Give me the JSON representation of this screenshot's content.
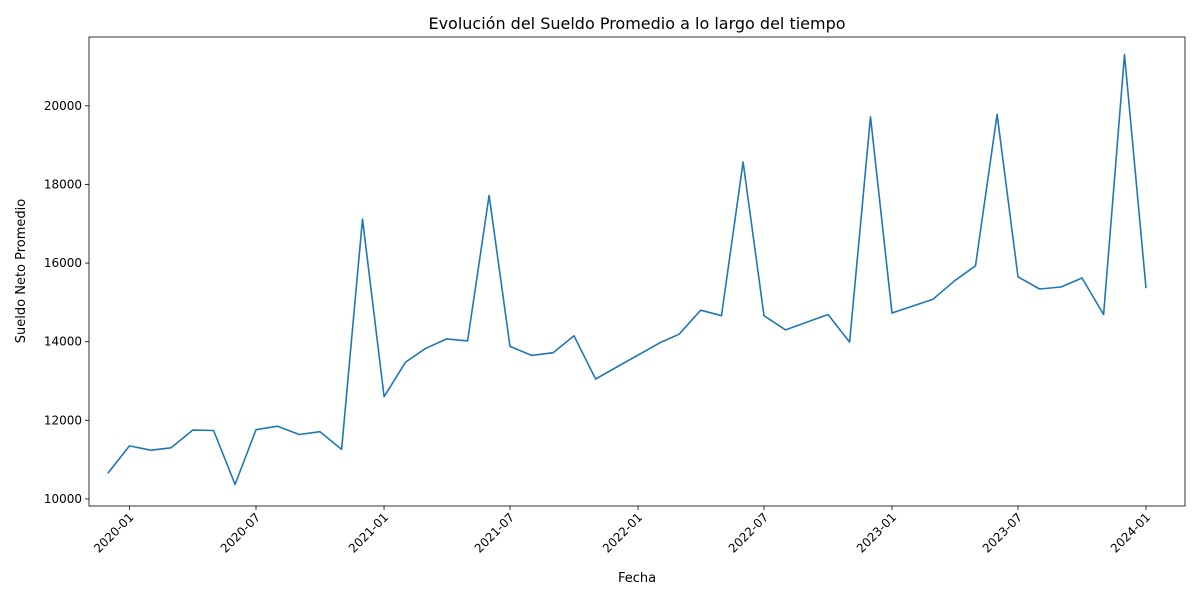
{
  "chart_data": {
    "type": "line",
    "title": "Evolución del Sueldo Promedio a lo largo del tiempo",
    "xlabel": "Fecha",
    "ylabel": "Sueldo Neto Promedio",
    "x_tick_labels": [
      "2020-01",
      "2020-07",
      "2021-01",
      "2021-07",
      "2022-01",
      "2022-07",
      "2023-01",
      "2023-07",
      "2024-01"
    ],
    "x_tick_values": [
      "2020-01-01",
      "2020-07-01",
      "2021-01-01",
      "2021-07-01",
      "2022-01-01",
      "2022-07-01",
      "2023-01-01",
      "2023-07-01",
      "2024-01-01"
    ],
    "y_tick_labels": [
      "10000",
      "12000",
      "14000",
      "16000",
      "18000",
      "20000"
    ],
    "y_tick_values": [
      10000,
      12000,
      14000,
      16000,
      18000,
      20000
    ],
    "xlim": [
      "2019-11-04",
      "2024-02-26"
    ],
    "ylim": [
      9820,
      21750
    ],
    "grid": false,
    "color": "#1f77b4",
    "series": [
      {
        "x": [
          "2019-12-01",
          "2020-01-01",
          "2020-02-01",
          "2020-03-01",
          "2020-04-01",
          "2020-05-01",
          "2020-06-01",
          "2020-07-01",
          "2020-08-01",
          "2020-09-01",
          "2020-10-01",
          "2020-11-01",
          "2020-12-01",
          "2021-01-01",
          "2021-02-01",
          "2021-03-01",
          "2021-04-01",
          "2021-05-01",
          "2021-06-01",
          "2021-07-01",
          "2021-08-01",
          "2021-09-01",
          "2021-10-01",
          "2021-11-01",
          "2022-02-01",
          "2022-03-01",
          "2022-04-01",
          "2022-05-01",
          "2022-06-01",
          "2022-07-01",
          "2022-08-01",
          "2022-10-01",
          "2022-11-01",
          "2022-12-01",
          "2023-01-01",
          "2023-03-01",
          "2023-04-01",
          "2023-05-01",
          "2023-06-01",
          "2023-07-01",
          "2023-08-01",
          "2023-09-01",
          "2023-10-01",
          "2023-11-01",
          "2023-12-01",
          "2024-01-01"
        ],
        "y": [
          10650,
          11350,
          11240,
          11300,
          11750,
          11740,
          10370,
          11760,
          11850,
          11640,
          11710,
          11260,
          17120,
          12600,
          13480,
          13820,
          14070,
          14020,
          17720,
          13880,
          13650,
          13720,
          14150,
          13050,
          13970,
          14190,
          14800,
          14660,
          18570,
          14660,
          14300,
          14690,
          13990,
          19720,
          14730,
          15080,
          15550,
          15930,
          19780,
          15650,
          15340,
          15390,
          15620,
          14690,
          21300,
          15360
        ]
      }
    ]
  }
}
